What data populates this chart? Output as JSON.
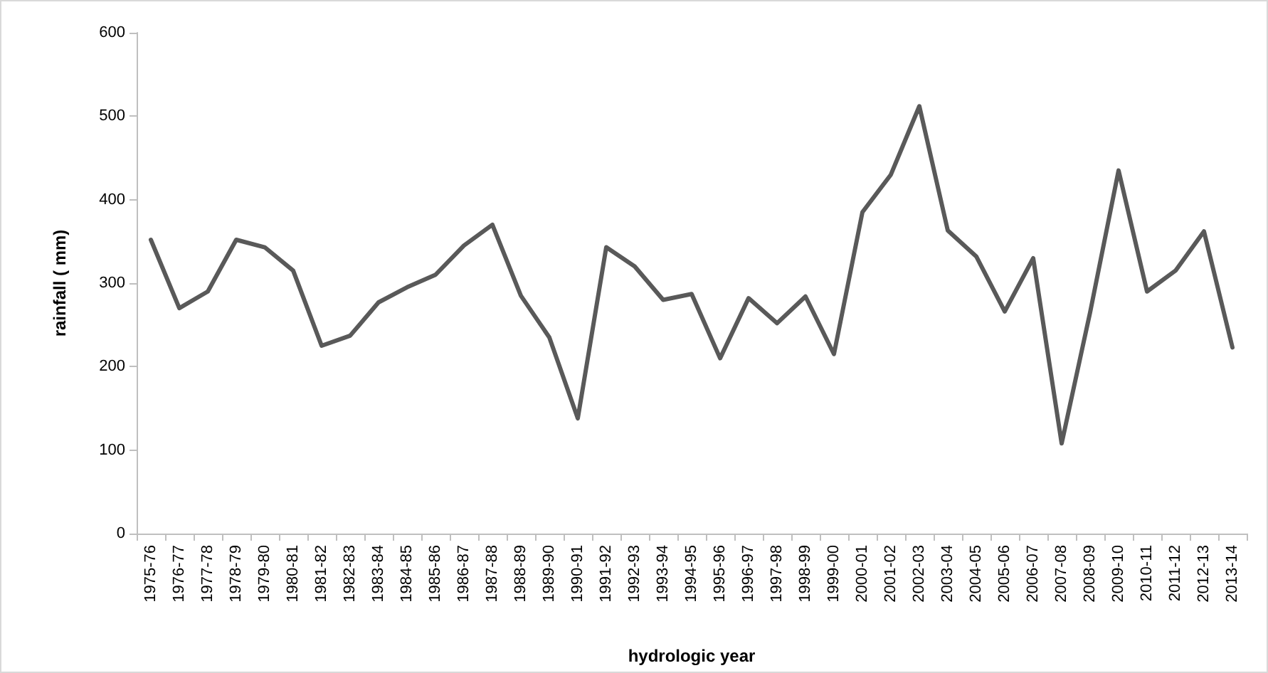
{
  "chart_data": {
    "type": "line",
    "xlabel": "hydrologic year",
    "ylabel": "rainfall ( mm)",
    "categories": [
      "1975-76",
      "1976-77",
      "1977-78",
      "1978-79",
      "1979-80",
      "1980-81",
      "1981-82",
      "1982-83",
      "1983-84",
      "1984-85",
      "1985-86",
      "1986-87",
      "1987-88",
      "1988-89",
      "1989-90",
      "1990-91",
      "1991-92",
      "1992-93",
      "1993-94",
      "1994-95",
      "1995-96",
      "1996-97",
      "1997-98",
      "1998-99",
      "1999-00",
      "2000-01",
      "2001-02",
      "2002-03",
      "2003-04",
      "2004-05",
      "2005-06",
      "2006-07",
      "2007-08",
      "2008-09",
      "2009-10",
      "2010-11",
      "2011-12",
      "2012-13",
      "2013-14"
    ],
    "series": [
      {
        "color": "#595959",
        "values": [
          352,
          270,
          290,
          352,
          343,
          315,
          225,
          237,
          277,
          295,
          310,
          345,
          370,
          285,
          235,
          138,
          343,
          320,
          280,
          287,
          210,
          282,
          252,
          284,
          215,
          385,
          430,
          512,
          363,
          332,
          266,
          330,
          108,
          265,
          435,
          290,
          315,
          362,
          223
        ]
      }
    ],
    "ylim": [
      0,
      600
    ],
    "yticks": [
      0,
      100,
      200,
      300,
      400,
      500,
      600
    ],
    "grid": false,
    "marker": "none",
    "line_style": "solid"
  }
}
